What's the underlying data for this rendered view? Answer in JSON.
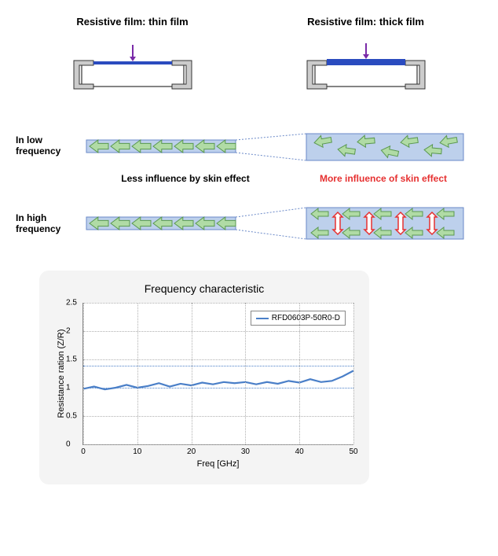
{
  "top": {
    "thin": {
      "title": "Resistive film: thin film",
      "film_color": "#2a4bbf",
      "body_stroke": "#333",
      "cap_fill": "#cccccc",
      "arrow_color": "#7a2aa8",
      "film_thickness": 4
    },
    "thick": {
      "title": "Resistive film: thick film",
      "film_color": "#2a4bbf",
      "body_stroke": "#333",
      "cap_fill": "#cccccc",
      "arrow_color": "#7a2aa8",
      "film_thickness": 8
    }
  },
  "strips": {
    "low_label": "In low frequency",
    "high_label": "In high frequency",
    "bg_color": "#bdd0ec",
    "border_color": "#6a89c8",
    "arrow_fill": "#b0dba5",
    "arrow_stroke": "#5a9850",
    "red_arrow_fill": "#ffffff",
    "red_arrow_stroke": "#e63030",
    "caption_thin": "Less influence by skin effect",
    "caption_thick": "More influence of skin effect"
  },
  "chart": {
    "title": "Frequency characteristic",
    "y_label": "Resistance ration  (Z/R)",
    "x_label": "Freq [GHz]",
    "legend": "RFD0603P-50R0-D",
    "ylim": [
      0,
      2.5
    ],
    "y_ticks": [
      0,
      0.5,
      1,
      1.5,
      2,
      2.5
    ],
    "xlim": [
      0,
      50
    ],
    "x_ticks": [
      0,
      10,
      20,
      30,
      40,
      50
    ],
    "ref_lines": [
      1.0,
      1.4
    ],
    "line_color": "#4a7fc8",
    "grid_color": "#b0b0b0",
    "data": [
      {
        "x": 0,
        "y": 0.98
      },
      {
        "x": 2,
        "y": 1.02
      },
      {
        "x": 4,
        "y": 0.97
      },
      {
        "x": 6,
        "y": 1.0
      },
      {
        "x": 8,
        "y": 1.05
      },
      {
        "x": 10,
        "y": 1.0
      },
      {
        "x": 12,
        "y": 1.03
      },
      {
        "x": 14,
        "y": 1.08
      },
      {
        "x": 16,
        "y": 1.02
      },
      {
        "x": 18,
        "y": 1.07
      },
      {
        "x": 20,
        "y": 1.04
      },
      {
        "x": 22,
        "y": 1.09
      },
      {
        "x": 24,
        "y": 1.06
      },
      {
        "x": 26,
        "y": 1.1
      },
      {
        "x": 28,
        "y": 1.08
      },
      {
        "x": 30,
        "y": 1.1
      },
      {
        "x": 32,
        "y": 1.06
      },
      {
        "x": 34,
        "y": 1.1
      },
      {
        "x": 36,
        "y": 1.07
      },
      {
        "x": 38,
        "y": 1.12
      },
      {
        "x": 40,
        "y": 1.09
      },
      {
        "x": 42,
        "y": 1.15
      },
      {
        "x": 44,
        "y": 1.1
      },
      {
        "x": 46,
        "y": 1.12
      },
      {
        "x": 48,
        "y": 1.2
      },
      {
        "x": 50,
        "y": 1.3
      }
    ]
  }
}
